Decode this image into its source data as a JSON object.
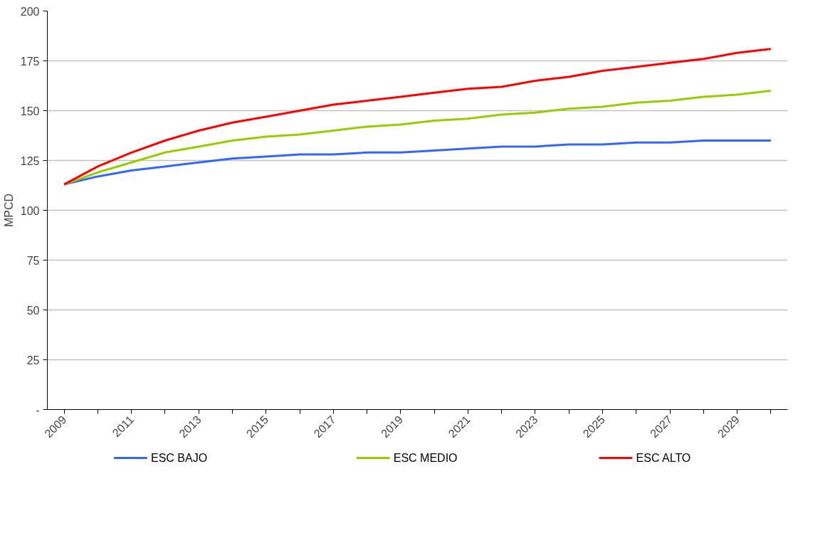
{
  "chart_data": {
    "type": "line",
    "ylabel": "MPCD",
    "categories": [
      "2009",
      null,
      "2011",
      null,
      "2013",
      null,
      "2015",
      null,
      "2017",
      null,
      "2019",
      null,
      "2021",
      null,
      "2023",
      null,
      "2025",
      null,
      "2027",
      null,
      "2029",
      null
    ],
    "series": [
      {
        "name": "ESC BAJO",
        "color": "#3366ff",
        "values": [
          113,
          117,
          120,
          122,
          124,
          126,
          127,
          128,
          128,
          129,
          129,
          130,
          131,
          132,
          132,
          133,
          133,
          134,
          134,
          135,
          135,
          135
        ]
      },
      {
        "name": "ESC MEDIO",
        "color": "#99cc00",
        "values": [
          113,
          119,
          124,
          129,
          132,
          135,
          137,
          138,
          140,
          142,
          143,
          145,
          146,
          148,
          149,
          151,
          152,
          154,
          155,
          157,
          158,
          160
        ]
      },
      {
        "name": "ESC ALTO",
        "color": "#ff0000",
        "values": [
          113,
          122,
          129,
          135,
          140,
          144,
          147,
          150,
          153,
          155,
          157,
          159,
          161,
          162,
          165,
          167,
          170,
          172,
          174,
          176,
          179,
          181
        ]
      }
    ],
    "ylim": [
      0,
      200
    ],
    "yticks": [
      {
        "value": 0,
        "label": "-"
      },
      25,
      50,
      75,
      100,
      125,
      150,
      175,
      200
    ],
    "grid": "y",
    "legend": "bottom",
    "marker": "none",
    "line_style": "solid"
  }
}
